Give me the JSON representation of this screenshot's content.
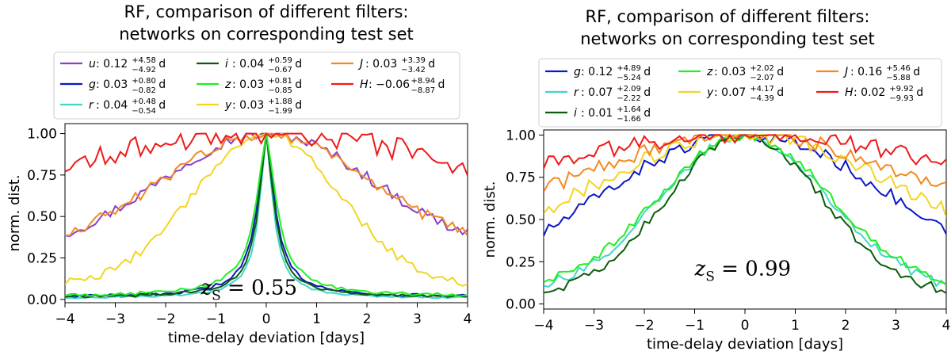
{
  "chart_data": [
    {
      "type": "line",
      "title": [
        "RF, comparison of different filters:",
        "networks on corresponding test set"
      ],
      "xlabel": "time-delay deviation [days]",
      "ylabel": "norm. dist.",
      "xlim": [
        -4,
        4
      ],
      "ylim": [
        -0.02,
        1.06
      ],
      "xticks": [
        -4,
        -3,
        -2,
        -1,
        0,
        1,
        2,
        3,
        4
      ],
      "yticks": [
        0.0,
        0.25,
        0.5,
        0.75,
        1.0
      ],
      "xtick_labels": [
        "−4",
        "−3",
        "−2",
        "−1",
        "0",
        "1",
        "2",
        "3",
        "4"
      ],
      "ytick_labels": [
        "0.00",
        "0.25",
        "0.50",
        "0.75",
        "1.00"
      ],
      "annotation": {
        "text_main": "z",
        "text_sub": "S",
        "text_rest": " = 0.55",
        "x": -1.3,
        "y": 0.03
      },
      "legend_placement": "above plot",
      "series": [
        {
          "name": "u",
          "color": "#8a3fc9",
          "mid": "0.12",
          "sup": "+4.58",
          "sub": "−4.92",
          "unit": "d",
          "shape": "broad",
          "edge": 0.4,
          "sigma": 2.1,
          "noise": 0.035
        },
        {
          "name": "g",
          "color": "#0a17c4",
          "mid": "0.03",
          "sup": "+0.80",
          "sub": "−0.82",
          "unit": "d",
          "shape": "narrow",
          "edge": 0.01,
          "sigma": 0.62,
          "noise": 0.01
        },
        {
          "name": "r",
          "color": "#40d6c8",
          "mid": "0.04",
          "sup": "+0.48",
          "sub": "−0.54",
          "unit": "d",
          "shape": "narrow",
          "edge": 0.005,
          "sigma": 0.48,
          "noise": 0.006
        },
        {
          "name": "i",
          "color": "#0b5c0b",
          "mid": "0.04",
          "sup": "+0.59",
          "sub": "−0.67",
          "unit": "d",
          "shape": "narrow",
          "edge": 0.01,
          "sigma": 0.55,
          "noise": 0.008
        },
        {
          "name": "z",
          "color": "#22ee22",
          "mid": "0.03",
          "sup": "+0.81",
          "sub": "−0.85",
          "unit": "d",
          "shape": "narrow",
          "edge": 0.015,
          "sigma": 0.72,
          "noise": 0.01
        },
        {
          "name": "y",
          "color": "#f2d523",
          "mid": "0.03",
          "sup": "+1.88",
          "sub": "−1.99",
          "unit": "d",
          "shape": "broad",
          "edge": 0.1,
          "sigma": 1.45,
          "noise": 0.025
        },
        {
          "name": "J",
          "color": "#f28a22",
          "mid": "0.03",
          "sup": "+3.39",
          "sub": "−3.42",
          "unit": "d",
          "shape": "broad",
          "edge": 0.4,
          "sigma": 2.05,
          "noise": 0.035
        },
        {
          "name": "H",
          "color": "#ee1a1a",
          "mid": "−0.06",
          "sup": "+8.94",
          "sub": "−8.87",
          "unit": "d",
          "shape": "flat",
          "edge": 0.8,
          "sigma": 8.9,
          "noise": 0.075
        }
      ],
      "legend_order": [
        "u",
        "i",
        "J",
        "g",
        "z",
        "H",
        "r",
        "y"
      ]
    },
    {
      "type": "line",
      "title": [
        "RF, comparison of different filters:",
        "networks on corresponding test set"
      ],
      "xlabel": "time-delay deviation [days]",
      "ylabel": "norm. dist.",
      "xlim": [
        -4,
        4
      ],
      "ylim": [
        -0.03,
        1.03
      ],
      "xticks": [
        -4,
        -3,
        -2,
        -1,
        0,
        1,
        2,
        3,
        4
      ],
      "yticks": [
        0.0,
        0.25,
        0.5,
        0.75,
        1.0
      ],
      "xtick_labels": [
        "−4",
        "−3",
        "−2",
        "−1",
        "0",
        "1",
        "2",
        "3",
        "4"
      ],
      "ytick_labels": [
        "0.00",
        "0.25",
        "0.50",
        "0.75",
        "1.00"
      ],
      "annotation": {
        "text_main": "z",
        "text_sub": "S",
        "text_rest": " = 0.99",
        "x": -1.0,
        "y": 0.17
      },
      "legend_placement": "above plot",
      "series": [
        {
          "name": "g",
          "color": "#0a17c4",
          "mid": "0.12",
          "sup": "+4.89",
          "sub": "−5.24",
          "unit": "d",
          "shape": "broad",
          "edge": 0.42,
          "sigma": 3.2,
          "noise": 0.04
        },
        {
          "name": "r",
          "color": "#40d6c8",
          "mid": "0.07",
          "sup": "+2.09",
          "sub": "−2.22",
          "unit": "d",
          "shape": "broad",
          "edge": 0.12,
          "sigma": 1.65,
          "noise": 0.03
        },
        {
          "name": "i",
          "color": "#0b5c0b",
          "mid": "0.01",
          "sup": "+1.64",
          "sub": "−1.66",
          "unit": "d",
          "shape": "broad",
          "edge": 0.08,
          "sigma": 1.55,
          "noise": 0.03
        },
        {
          "name": "z",
          "color": "#22ee22",
          "mid": "0.03",
          "sup": "+2.02",
          "sub": "−2.07",
          "unit": "d",
          "shape": "broad",
          "edge": 0.14,
          "sigma": 1.7,
          "noise": 0.03
        },
        {
          "name": "y",
          "color": "#f2d523",
          "mid": "0.07",
          "sup": "+4.17",
          "sub": "−4.39",
          "unit": "d",
          "shape": "broad",
          "edge": 0.55,
          "sigma": 3.4,
          "noise": 0.045
        },
        {
          "name": "J",
          "color": "#f28a22",
          "mid": "0.16",
          "sup": "+5.46",
          "sub": "−5.88",
          "unit": "d",
          "shape": "broad",
          "edge": 0.68,
          "sigma": 3.9,
          "noise": 0.045
        },
        {
          "name": "H",
          "color": "#ee1a1a",
          "mid": "0.02",
          "sup": "+9.92",
          "sub": "−9.93",
          "unit": "d",
          "shape": "flat",
          "edge": 0.82,
          "sigma": 9.9,
          "noise": 0.05
        }
      ],
      "legend_order": [
        "g",
        "z",
        "J",
        "r",
        "y",
        "H",
        "i"
      ]
    }
  ]
}
